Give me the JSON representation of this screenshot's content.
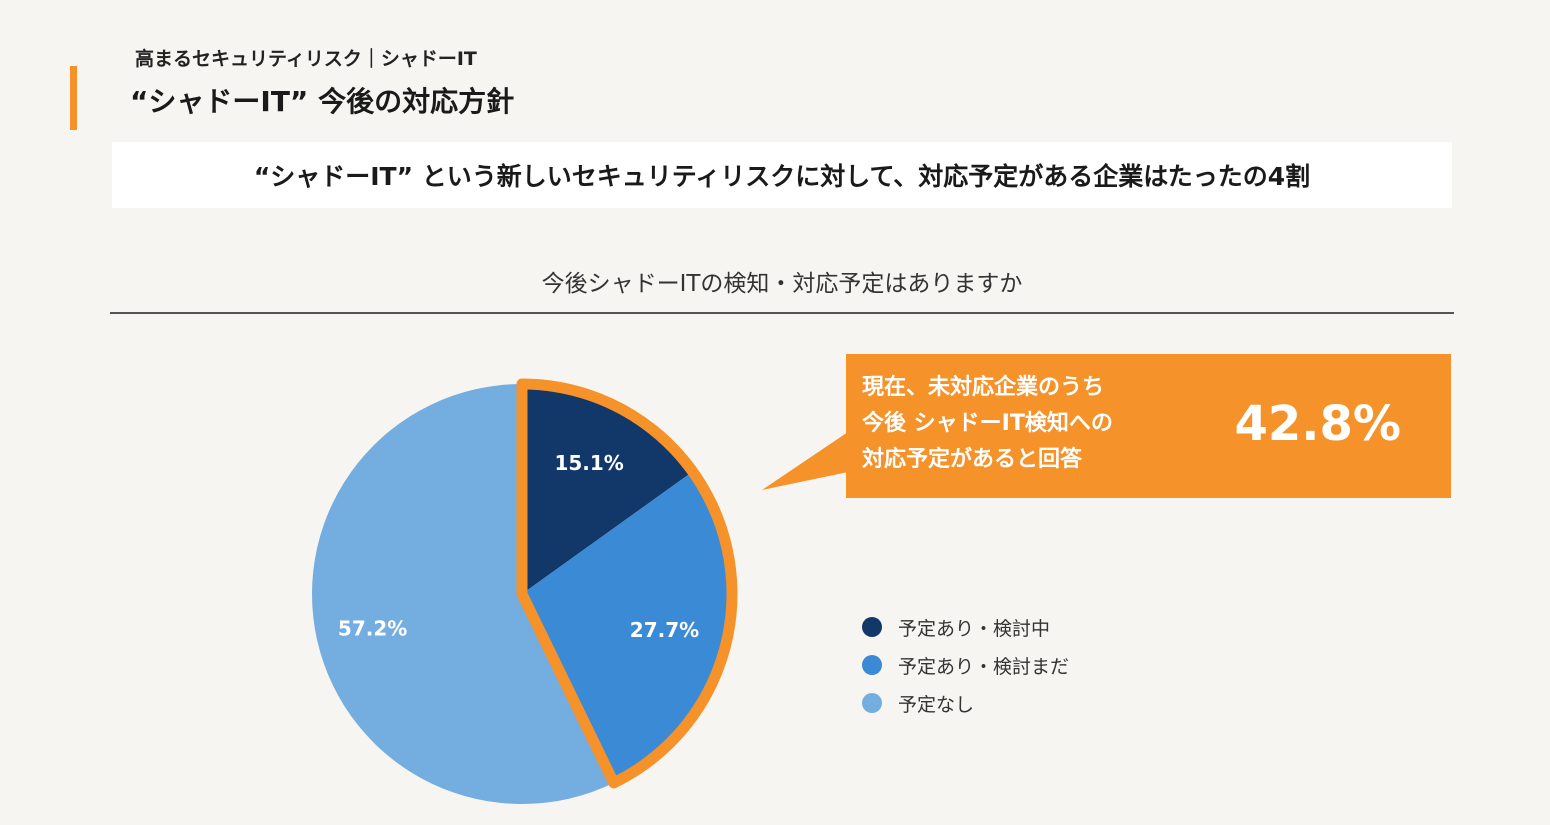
{
  "header": {
    "subtitle": "高まるセキュリティリスク｜シャドーIT",
    "title": "“シャドーIT” 今後の対応方針"
  },
  "headline": "“シャドーIT” という新しいセキュリティリスクに対して、対応予定がある企業はたったの4割",
  "callout": {
    "lines": [
      "現在、未対応企業のうち",
      "今後 シャドーIT検知への",
      "対応予定があると回答"
    ],
    "value": "42.8%",
    "color": "#f5922a"
  },
  "chart_data": {
    "type": "pie",
    "title": "今後シャドーITの検知・対応予定はありますか",
    "categories": [
      "予定あり・検討中",
      "予定あり・検討まだ",
      "予定なし"
    ],
    "values": [
      15.1,
      27.7,
      57.2
    ],
    "data_labels": [
      "15.1%",
      "27.7%",
      "57.2%"
    ],
    "colors": [
      "#12386a",
      "#3a8ad6",
      "#74ade0"
    ],
    "highlight": {
      "categories": [
        "予定あり・検討中",
        "予定あり・検討まだ"
      ],
      "border_color": "#f5922a"
    },
    "legend_position": "right"
  }
}
